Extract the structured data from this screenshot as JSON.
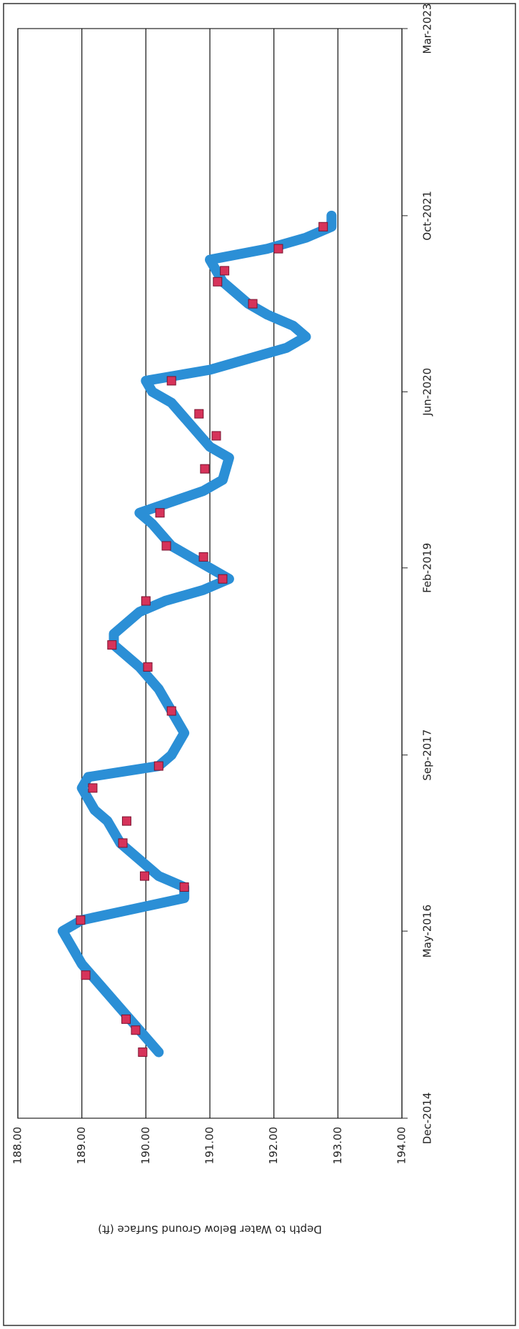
{
  "chart_data": {
    "type": "line",
    "y_label": "Depth to Water Below Ground Surface (ft)",
    "ylim": [
      188,
      194
    ],
    "y_inverted": true,
    "yticks": [
      {
        "value": 188,
        "label": "188.00"
      },
      {
        "value": 189,
        "label": "189.00"
      },
      {
        "value": 190,
        "label": "190.00"
      },
      {
        "value": 191,
        "label": "191.00"
      },
      {
        "value": 192,
        "label": "192.00"
      },
      {
        "value": 193,
        "label": "193.00"
      },
      {
        "value": 194,
        "label": "194.00"
      }
    ],
    "xlim": [
      "2014-12",
      "2023-03"
    ],
    "xticks": [
      {
        "value": "2014-12",
        "label": "Dec-2014"
      },
      {
        "value": "2016-05",
        "label": "May-2016"
      },
      {
        "value": "2017-09",
        "label": "Sep-2017"
      },
      {
        "value": "2019-02",
        "label": "Feb-2019"
      },
      {
        "value": "2020-06",
        "label": "Jun-2020"
      },
      {
        "value": "2021-10",
        "label": "Oct-2021"
      },
      {
        "value": "2023-03",
        "label": "Mar-2023"
      }
    ],
    "grid": true,
    "series": [
      {
        "style": "line",
        "color": "#2b8fd6",
        "x": [
          "2015-06",
          "2015-08",
          "2015-10",
          "2015-12",
          "2016-02",
          "2016-04",
          "2016-05",
          "2016-06",
          "2016-07",
          "2016-08",
          "2016-09",
          "2016-10",
          "2016-11",
          "2016-12",
          "2017-01",
          "2017-03",
          "2017-04",
          "2017-06",
          "2017-07",
          "2017-08",
          "2017-09",
          "2017-11",
          "2018-01",
          "2018-03",
          "2018-05",
          "2018-07",
          "2018-08",
          "2018-10",
          "2018-11",
          "2018-12",
          "2019-01",
          "2019-02",
          "2019-03",
          "2019-04",
          "2019-06",
          "2019-07",
          "2019-08",
          "2019-09",
          "2019-10",
          "2019-12",
          "2020-01",
          "2020-03",
          "2020-05",
          "2020-06",
          "2020-07",
          "2020-08",
          "2020-09",
          "2020-10",
          "2020-11",
          "2020-12",
          "2021-01",
          "2021-02",
          "2021-04",
          "2021-05",
          "2021-06",
          "2021-07",
          "2021-08",
          "2021-09",
          "2021-10"
        ],
        "values": [
          190.2,
          189.9,
          189.6,
          189.3,
          189.0,
          188.8,
          188.7,
          189.0,
          189.8,
          190.6,
          190.6,
          190.2,
          190.0,
          189.8,
          189.6,
          189.4,
          189.2,
          189.0,
          189.1,
          190.2,
          190.4,
          190.6,
          190.4,
          190.2,
          189.9,
          189.5,
          189.5,
          189.9,
          190.3,
          190.9,
          191.3,
          191.0,
          190.7,
          190.4,
          190.1,
          189.9,
          190.4,
          190.9,
          191.2,
          191.3,
          191.0,
          190.7,
          190.4,
          190.1,
          190.0,
          191.0,
          191.6,
          192.2,
          192.5,
          192.3,
          191.9,
          191.6,
          191.2,
          191.1,
          191.0,
          191.9,
          192.5,
          192.9,
          192.9
        ]
      },
      {
        "style": "markers",
        "color": "#d6335a",
        "x": [
          "2015-06",
          "2015-08",
          "2015-09",
          "2016-01",
          "2016-06",
          "2016-09",
          "2016-10",
          "2017-01",
          "2017-03",
          "2017-06",
          "2017-08",
          "2018-01",
          "2018-05",
          "2018-07",
          "2018-11",
          "2019-01",
          "2019-03",
          "2019-04",
          "2019-07",
          "2019-11",
          "2020-02",
          "2020-04",
          "2020-07",
          "2021-02",
          "2021-04",
          "2021-05",
          "2021-07",
          "2021-09"
        ],
        "values": [
          189.95,
          189.84,
          189.69,
          189.06,
          188.98,
          190.6,
          189.98,
          189.64,
          189.7,
          189.17,
          190.2,
          190.4,
          190.03,
          189.47,
          190.0,
          191.2,
          190.9,
          190.32,
          190.22,
          190.92,
          191.1,
          190.83,
          190.4,
          191.67,
          191.12,
          191.23,
          192.07,
          192.77
        ]
      }
    ]
  }
}
